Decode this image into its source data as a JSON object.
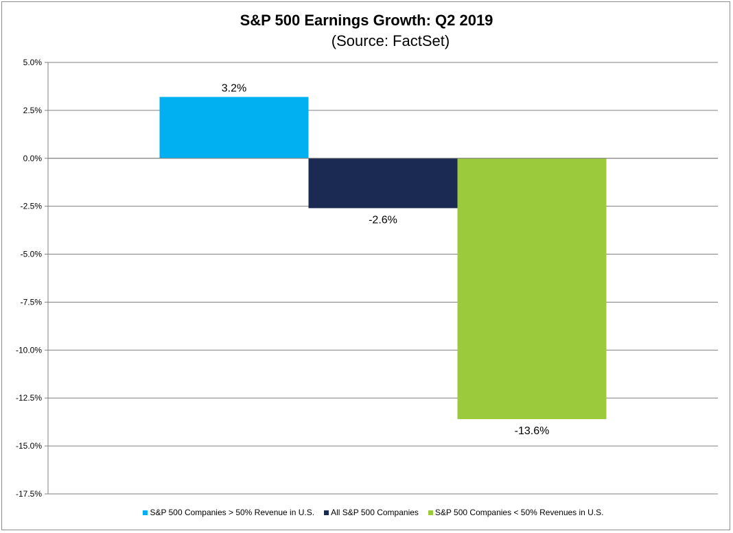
{
  "chart_data": {
    "type": "bar",
    "title": "S&P 500 Earnings Growth:  Q2 2019",
    "subtitle": "(Source: FactSet)",
    "xlabel": "",
    "ylabel": "",
    "ylim": [
      -17.5,
      5.0
    ],
    "ytick_step": 2.5,
    "yticks": [
      "5.0%",
      "2.5%",
      "0.0%",
      "-2.5%",
      "-5.0%",
      "-7.5%",
      "-10.0%",
      "-12.5%",
      "-15.0%",
      "-17.5%"
    ],
    "grid": true,
    "legend_position": "bottom",
    "series": [
      {
        "name": "S&P 500 Companies > 50% Revenue in U.S.",
        "value": 3.2,
        "label": "3.2%",
        "color": "#00b0f0"
      },
      {
        "name": "All S&P 500 Companies",
        "value": -2.6,
        "label": "-2.6%",
        "color": "#1b2a52"
      },
      {
        "name": "S&P 500 Companies < 50% Revenues in U.S.",
        "value": -13.6,
        "label": "-13.6%",
        "color": "#9bcb3c"
      }
    ]
  }
}
